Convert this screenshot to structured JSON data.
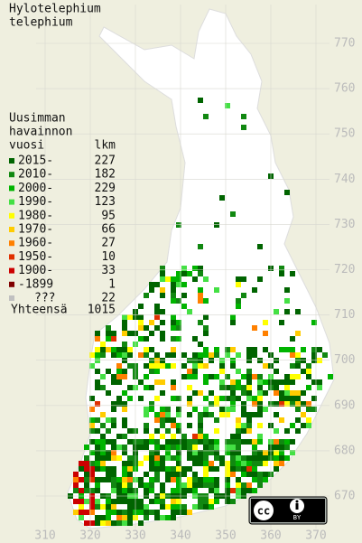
{
  "title": [
    "Hylotelephium",
    "telephium"
  ],
  "legend": {
    "heading": [
      "Uusimman",
      "havainnon",
      "vuosi"
    ],
    "count_heading": "lkm",
    "entries": [
      {
        "label": "2015-",
        "count": 227,
        "color": "#006400"
      },
      {
        "label": "2010-",
        "count": 182,
        "color": "#118811"
      },
      {
        "label": "2000-",
        "count": 229,
        "color": "#00b400"
      },
      {
        "label": "1990-",
        "count": 123,
        "color": "#44e044"
      },
      {
        "label": "1980-",
        "count": 95,
        "color": "#ffff00"
      },
      {
        "label": "1970-",
        "count": 66,
        "color": "#ffcc00"
      },
      {
        "label": "1960-",
        "count": 27,
        "color": "#ff8000"
      },
      {
        "label": "1950-",
        "count": 10,
        "color": "#e03000"
      },
      {
        "label": "1900-",
        "count": 33,
        "color": "#cc0000"
      },
      {
        "label": "-1899",
        "count": 1,
        "color": "#800000"
      },
      {
        "label": "???",
        "count": 22,
        "color": "#c0c0c0"
      }
    ],
    "total_label": "Yhteensä",
    "total": 1015
  },
  "x_grid": [
    310,
    320,
    330,
    340,
    350,
    360,
    370
  ],
  "y_grid": [
    670,
    680,
    690,
    700,
    710,
    720,
    730,
    740,
    750,
    760,
    770
  ],
  "license": {
    "icon": "cc",
    "label": "BY"
  }
}
